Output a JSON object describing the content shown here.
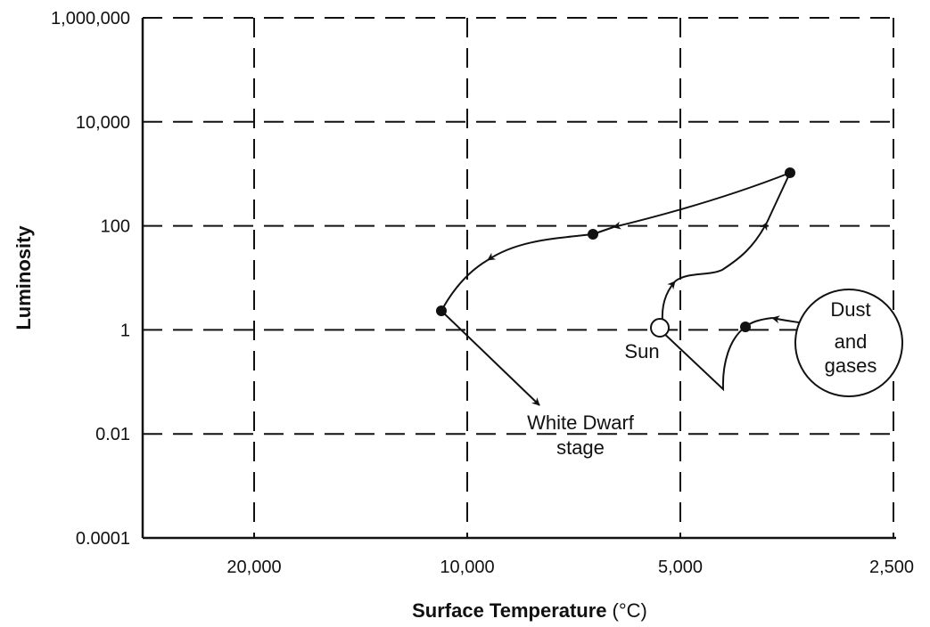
{
  "chart_data": {
    "type": "line",
    "xlabel": "Surface Temperature",
    "xlabel_unit": "(°C)",
    "ylabel": "Luminosity",
    "x_scale": "log-reversed",
    "y_scale": "log",
    "xlim": [
      35000,
      2300
    ],
    "ylim": [
      0.0001,
      1000000
    ],
    "x_ticks": [
      {
        "value": 20000,
        "label": "20,000"
      },
      {
        "value": 10000,
        "label": "10,000"
      },
      {
        "value": 5000,
        "label": "5,000"
      },
      {
        "value": 2500,
        "label": "2,500"
      }
    ],
    "y_ticks": [
      {
        "value": 1000000,
        "label": "1,000,000"
      },
      {
        "value": 10000,
        "label": "10,000"
      },
      {
        "value": 100,
        "label": "100"
      },
      {
        "value": 1,
        "label": "1"
      },
      {
        "value": 0.01,
        "label": "0.01"
      },
      {
        "value": 0.0001,
        "label": "0.0001"
      }
    ],
    "grid": true,
    "points": [
      {
        "name": "protostar",
        "temperature": 3500,
        "luminosity": 1.1
      },
      {
        "name": "sun",
        "label": "Sun",
        "temperature": 4650,
        "luminosity": 1.0
      },
      {
        "name": "red-giant",
        "temperature": 2900,
        "luminosity": 1000
      },
      {
        "name": "giant-stage",
        "temperature": 6600,
        "luminosity": 70
      },
      {
        "name": "peak-stage",
        "temperature": 11400,
        "luminosity": 2.2
      }
    ],
    "annotations": {
      "dust": [
        "Dust",
        "and",
        "gases"
      ],
      "sun": "Sun",
      "white_dwarf": [
        "White Dwarf",
        "stage"
      ]
    }
  }
}
